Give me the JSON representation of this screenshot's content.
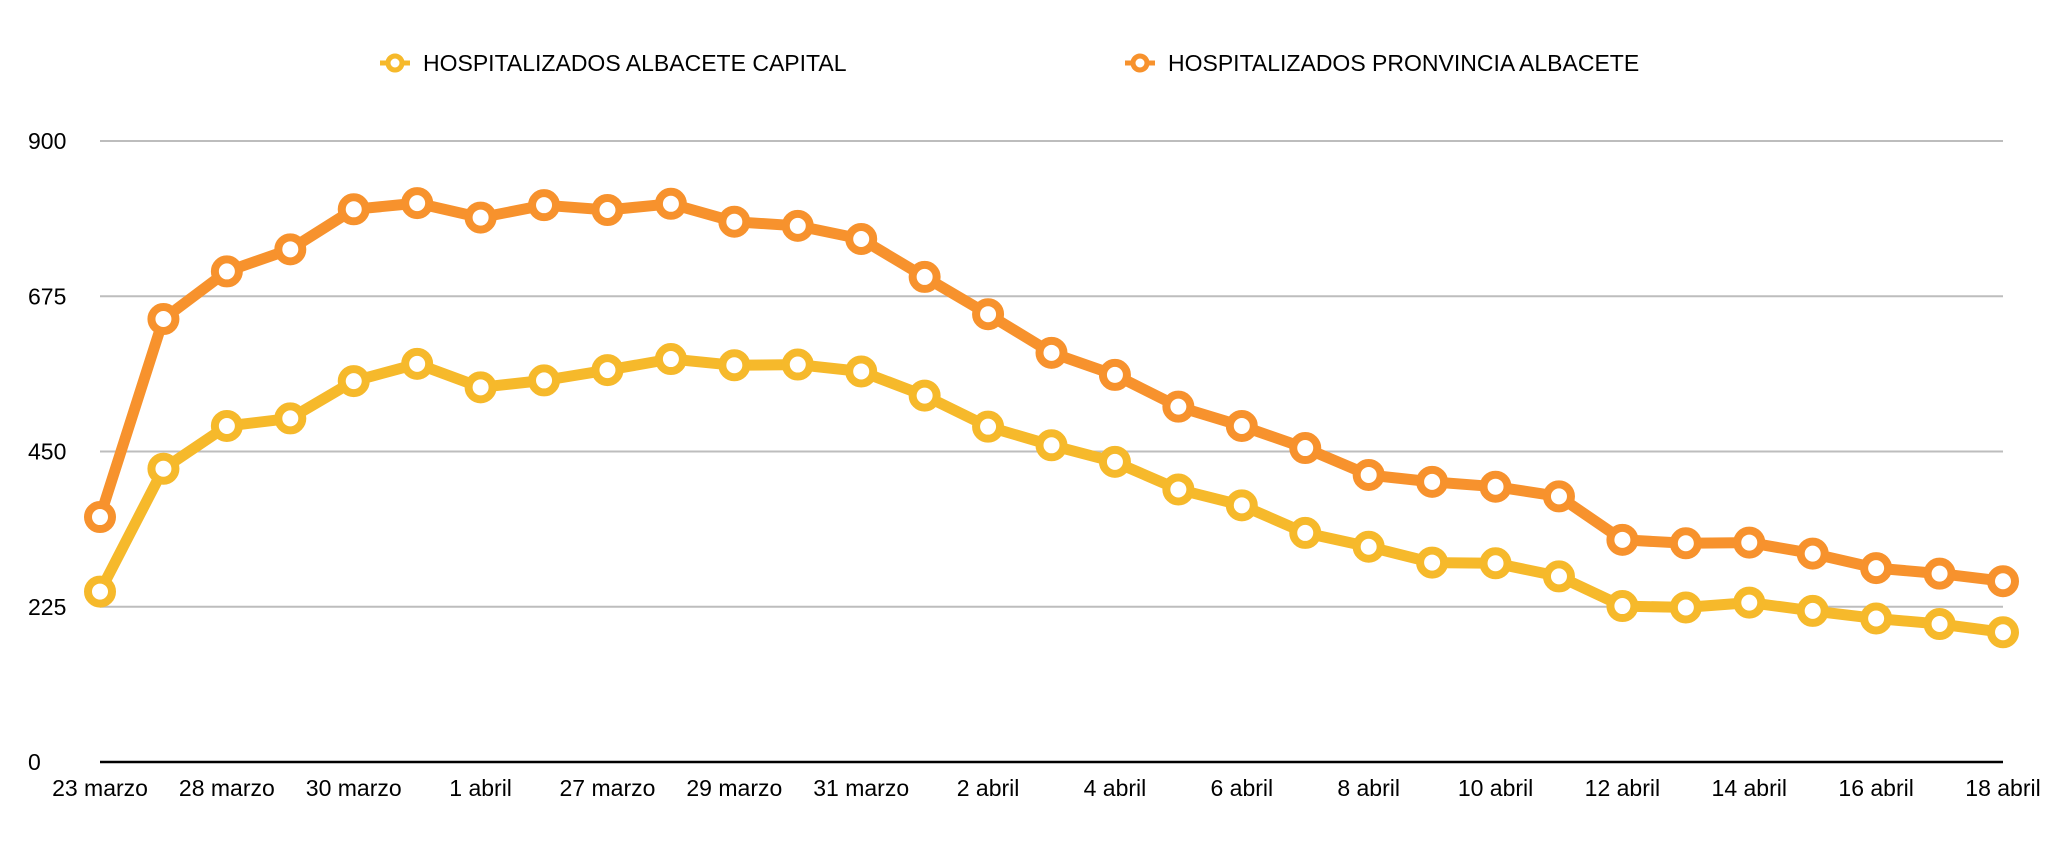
{
  "chart_data": {
    "type": "line",
    "title": "",
    "xlabel": "",
    "ylabel": "",
    "ylim": [
      0,
      900
    ],
    "yticks": [
      0,
      225,
      450,
      675,
      900
    ],
    "grid": true,
    "legend_position": "top-center",
    "categories": [
      "23 marzo",
      "",
      "28 marzo",
      "",
      "30 marzo",
      "",
      "1 abril",
      "",
      "27 marzo",
      "",
      "29 marzo",
      "",
      "31 marzo",
      "",
      "2 abril",
      "",
      "4 abril",
      "",
      "6 abril",
      "",
      "8 abril",
      "",
      "10 abril",
      "",
      "12 abril",
      "",
      "14 abril",
      "",
      "16 abril",
      "",
      "18 abril"
    ],
    "series": [
      {
        "name": "HOSPITALIZADOS ALBACETE CAPITAL",
        "color": "#F6B92B",
        "values": [
          247,
          425,
          487,
          498,
          552,
          577,
          543,
          553,
          568,
          584,
          575,
          576,
          566,
          531,
          486,
          459,
          435,
          395,
          372,
          332,
          312,
          289,
          288,
          269,
          226,
          224,
          231,
          219,
          208,
          200,
          188
        ]
      },
      {
        "name": "HOSPITALIZADOS PRONVINCIA ALBACETE",
        "color": "#F7922D",
        "values": [
          355,
          642,
          711,
          743,
          801,
          810,
          789,
          807,
          800,
          809,
          783,
          777,
          758,
          703,
          649,
          593,
          561,
          515,
          487,
          455,
          416,
          406,
          399,
          385,
          322,
          317,
          318,
          302,
          281,
          273,
          262
        ]
      }
    ]
  }
}
